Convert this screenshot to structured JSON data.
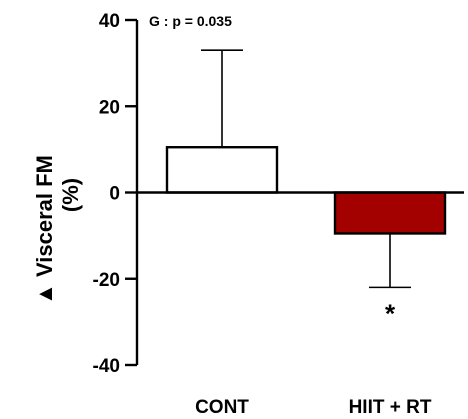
{
  "chart_data": {
    "type": "bar",
    "categories": [
      "CONT",
      "HIIT + RT"
    ],
    "values": [
      10.5,
      -9.5
    ],
    "error_bars": [
      22.5,
      12.5
    ],
    "error_direction": [
      "up",
      "down"
    ],
    "bar_colors": [
      "#ffffff",
      "#a30000"
    ],
    "ylabel": "Visceral  FM",
    "ylabel_sub": "(%)",
    "ylabel_delta_symbol": "▲",
    "ylim": [
      -40,
      40
    ],
    "yticks": [
      40,
      20,
      0,
      -20,
      -40
    ],
    "ytick_labels": [
      "40",
      "20",
      "0",
      "-20",
      "-40"
    ],
    "annotation": "G :  p = 0.035",
    "significance_marks": [
      "",
      "*"
    ],
    "grid": false,
    "legend": "none"
  }
}
